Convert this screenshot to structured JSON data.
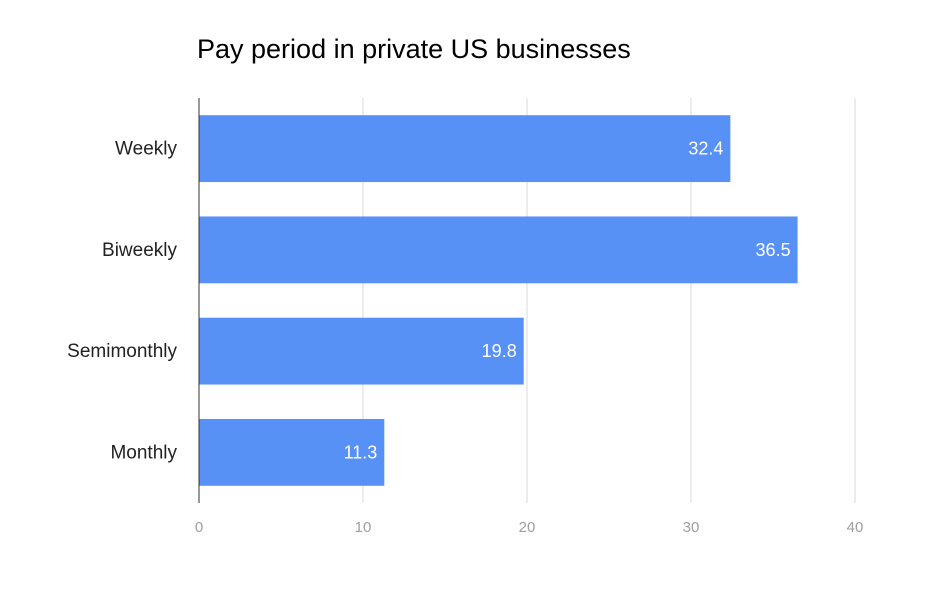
{
  "chart_data": {
    "type": "bar",
    "orientation": "horizontal",
    "title": "Pay period in private US businesses",
    "categories": [
      "Weekly",
      "Biweekly",
      "Semimonthly",
      "Monthly"
    ],
    "values": [
      32.4,
      36.5,
      19.8,
      11.3
    ],
    "data_labels": [
      "32.4",
      "36.5",
      "19.8",
      "11.3"
    ],
    "xlim": [
      0,
      40
    ],
    "x_ticks": [
      "0",
      "10",
      "20",
      "30",
      "40"
    ],
    "grid": true,
    "legend": "none",
    "colors": {
      "bar": "#5891f5"
    }
  }
}
